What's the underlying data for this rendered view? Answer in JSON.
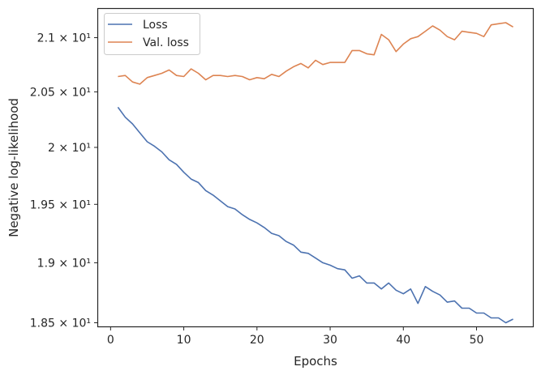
{
  "chart_data": {
    "type": "line",
    "xlabel": "Epochs",
    "ylabel": "Negative log-likelihood",
    "xlim": [
      -1.7,
      57.7
    ],
    "ylim": [
      18.47,
      21.27
    ],
    "y_scale": "log",
    "x_ticks": [
      0,
      10,
      20,
      30,
      40,
      50
    ],
    "x_tick_labels": [
      "0",
      "10",
      "20",
      "30",
      "40",
      "50"
    ],
    "y_ticks": [
      18.5,
      19.0,
      19.5,
      20.0,
      20.5,
      21.0
    ],
    "y_tick_labels": [
      "1.85 × 10¹",
      "1.9 × 10¹",
      "1.95 × 10¹",
      "2 × 10¹",
      "2.05 × 10¹",
      "2.1 × 10¹"
    ],
    "grid": false,
    "legend_position": "top-left",
    "x": [
      1,
      2,
      3,
      4,
      5,
      6,
      7,
      8,
      9,
      10,
      11,
      12,
      13,
      14,
      15,
      16,
      17,
      18,
      19,
      20,
      21,
      22,
      23,
      24,
      25,
      26,
      27,
      28,
      29,
      30,
      31,
      32,
      33,
      34,
      35,
      36,
      37,
      38,
      39,
      40,
      41,
      42,
      43,
      44,
      45,
      46,
      47,
      48,
      49,
      50,
      51,
      52,
      53,
      54,
      55
    ],
    "series": [
      {
        "name": "Loss",
        "color": "#4c72b0",
        "values": [
          20.36,
          20.27,
          20.21,
          20.13,
          20.05,
          20.01,
          19.96,
          19.89,
          19.85,
          19.78,
          19.72,
          19.69,
          19.62,
          19.58,
          19.53,
          19.48,
          19.46,
          19.41,
          19.37,
          19.34,
          19.3,
          19.25,
          19.23,
          19.18,
          19.15,
          19.09,
          19.08,
          19.04,
          19.0,
          18.98,
          18.95,
          18.94,
          18.87,
          18.89,
          18.83,
          18.83,
          18.78,
          18.83,
          18.77,
          18.74,
          18.78,
          18.66,
          18.8,
          18.76,
          18.73,
          18.67,
          18.68,
          18.62,
          18.62,
          18.58,
          18.58,
          18.54,
          18.54,
          18.5,
          18.53
        ]
      },
      {
        "name": "Val. loss",
        "color": "#dd8452",
        "values": [
          20.64,
          20.65,
          20.59,
          20.57,
          20.63,
          20.65,
          20.67,
          20.7,
          20.65,
          20.64,
          20.71,
          20.67,
          20.61,
          20.65,
          20.65,
          20.64,
          20.65,
          20.64,
          20.61,
          20.63,
          20.62,
          20.66,
          20.64,
          20.69,
          20.73,
          20.76,
          20.72,
          20.79,
          20.75,
          20.77,
          20.77,
          20.77,
          20.88,
          20.88,
          20.85,
          20.84,
          21.03,
          20.98,
          20.87,
          20.94,
          20.99,
          21.01,
          21.06,
          21.11,
          21.07,
          21.01,
          20.98,
          21.06,
          21.05,
          21.04,
          21.01,
          21.12,
          21.13,
          21.14,
          21.1
        ]
      }
    ]
  }
}
